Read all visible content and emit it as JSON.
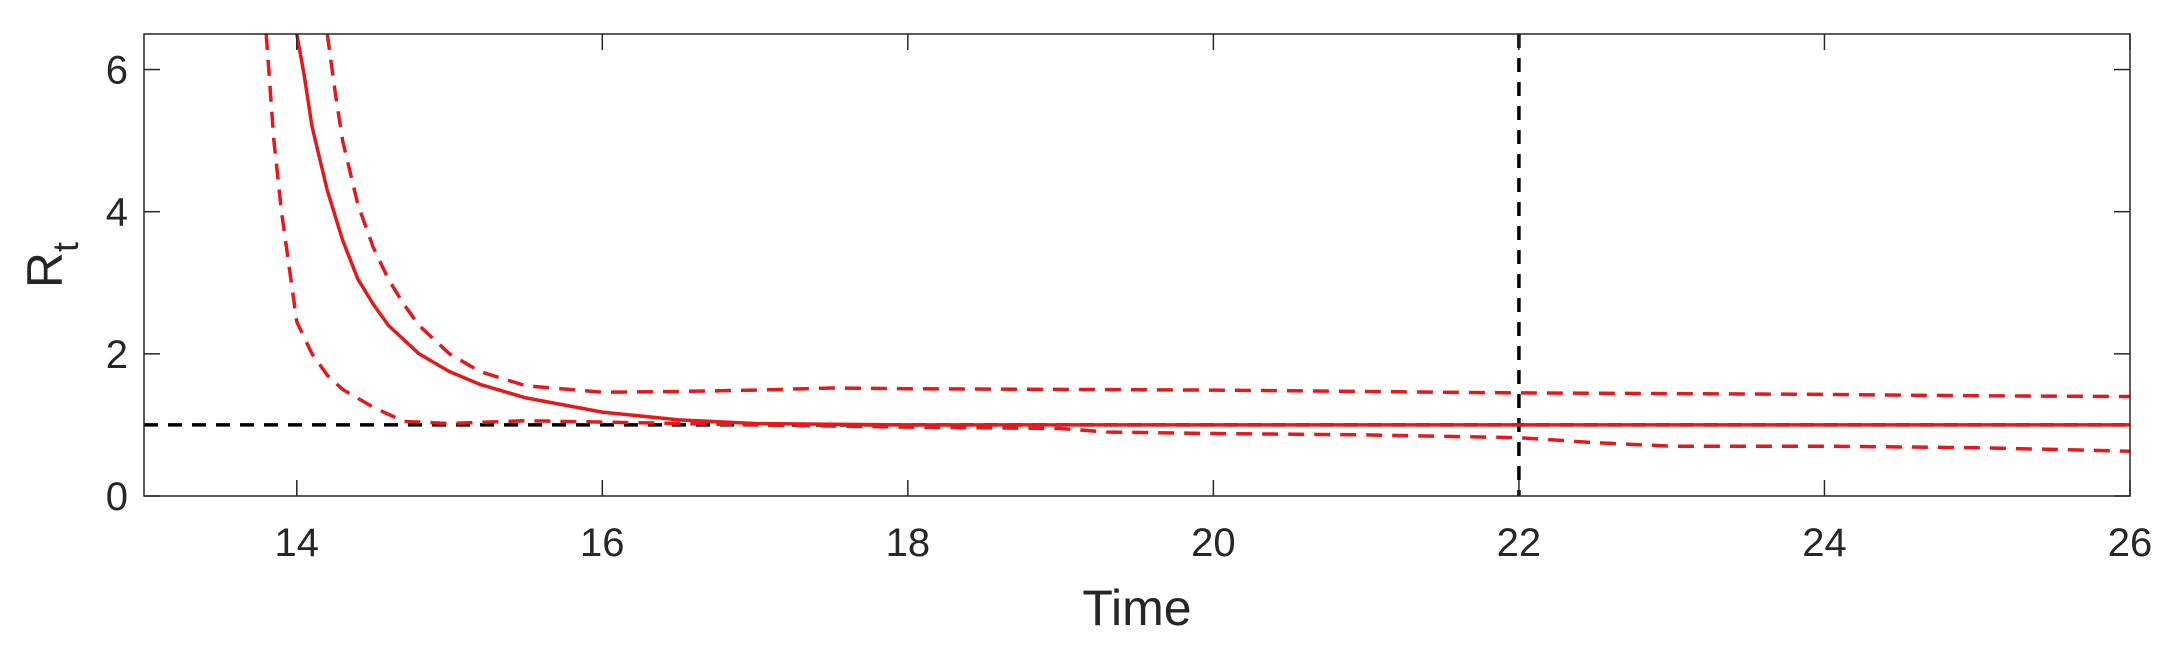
{
  "chart_data": {
    "type": "line",
    "title": "",
    "xlabel": "Time",
    "ylabel_main": "R",
    "ylabel_sub": "t",
    "xlim": [
      13,
      26
    ],
    "ylim": [
      0,
      6.5
    ],
    "xticks": [
      14,
      16,
      18,
      20,
      22,
      24,
      26
    ],
    "yticks": [
      0,
      2,
      4,
      6
    ],
    "grid": false,
    "legend": "none",
    "reference_lines": {
      "horizontal_y": 1,
      "vertical_x": 22,
      "color": "#000000"
    },
    "series": [
      {
        "style": "solid",
        "color": "#e31a1c",
        "x": [
          14.0,
          14.05,
          14.1,
          14.2,
          14.3,
          14.4,
          14.5,
          14.6,
          14.8,
          15.0,
          15.2,
          15.5,
          16.0,
          16.5,
          17.0,
          18.0,
          19.0,
          20.0,
          22.0,
          24.0,
          26.0
        ],
        "y": [
          6.5,
          5.9,
          5.2,
          4.3,
          3.6,
          3.05,
          2.7,
          2.4,
          2.0,
          1.75,
          1.57,
          1.38,
          1.18,
          1.07,
          1.02,
          1.0,
          1.0,
          1.0,
          1.0,
          1.0,
          1.0
        ]
      },
      {
        "style": "dashed",
        "color": "#e31a1c",
        "x": [
          14.2,
          14.25,
          14.3,
          14.4,
          14.5,
          14.6,
          14.7,
          14.8,
          15.0,
          15.2,
          15.5,
          16.0,
          16.5,
          17.0,
          17.5,
          18.0,
          19.0,
          20.0,
          21.0,
          22.0,
          23.0,
          24.0,
          25.0,
          26.0
        ],
        "y": [
          6.5,
          5.7,
          5.0,
          4.1,
          3.5,
          3.05,
          2.7,
          2.4,
          2.0,
          1.75,
          1.55,
          1.46,
          1.47,
          1.49,
          1.52,
          1.51,
          1.5,
          1.49,
          1.47,
          1.45,
          1.44,
          1.43,
          1.41,
          1.4
        ]
      },
      {
        "style": "dashed",
        "color": "#e31a1c",
        "x": [
          13.8,
          13.85,
          13.9,
          14.0,
          14.1,
          14.2,
          14.3,
          14.5,
          14.7,
          15.0,
          15.5,
          16.0,
          17.0,
          18.0,
          19.0,
          19.3,
          20.0,
          21.0,
          22.0,
          22.5,
          23.0,
          24.0,
          25.0,
          26.0
        ],
        "y": [
          6.5,
          5.0,
          4.0,
          2.45,
          2.0,
          1.7,
          1.5,
          1.25,
          1.05,
          1.02,
          1.06,
          1.04,
          1.0,
          0.97,
          0.95,
          0.9,
          0.88,
          0.86,
          0.82,
          0.75,
          0.7,
          0.7,
          0.68,
          0.63
        ]
      }
    ]
  }
}
